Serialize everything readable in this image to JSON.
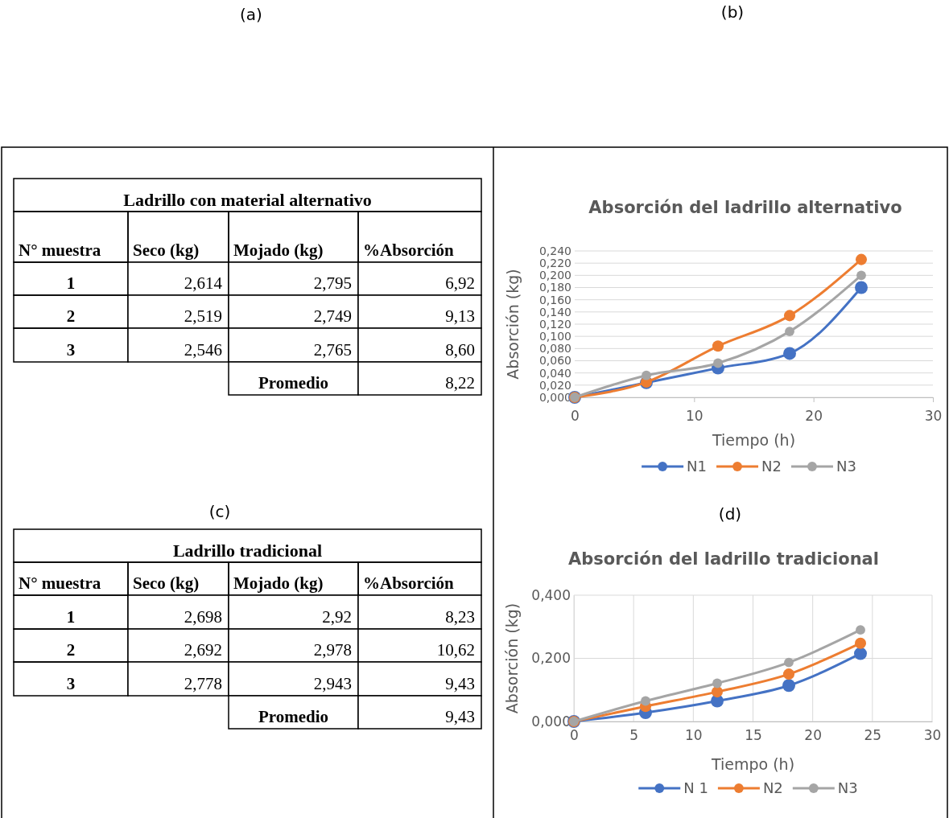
{
  "chart_data": [
    {
      "type": "other",
      "title": "Ladrillo con material alternativo",
      "annotations": [
        "(a)"
      ],
      "ylabel": "N° muestra",
      "categories": [
        "Seco (kg)",
        "Mojado (kg)",
        "%Absorción"
      ],
      "y_categories": [
        "1",
        "2",
        "3",
        null
      ],
      "cell_labels": [
        [
          "2,614",
          "2,795",
          "6,92"
        ],
        [
          "2,519",
          "2,749",
          "9,13"
        ],
        [
          "2,546",
          "2,765",
          "8,60"
        ],
        [
          null,
          "Promedio",
          "8,22"
        ]
      ]
    },
    {
      "type": "line",
      "title": "Absorción del ladrillo alternativo",
      "annotations": [
        "(b)"
      ],
      "xlabel": "Tiempo (h)",
      "ylabel": "Absorción (kg)",
      "x": [
        0,
        6,
        12,
        18,
        24
      ],
      "series": [
        {
          "name": "N1",
          "color": "#4472c4",
          "values": [
            0,
            0.024,
            0.048,
            0.072,
            0.18
          ]
        },
        {
          "name": "N2",
          "color": "#ed7d31",
          "values": [
            0,
            0.025,
            0.084,
            0.134,
            0.226
          ]
        },
        {
          "name": "N3",
          "color": "#a5a5a5",
          "values": [
            0,
            0.036,
            0.056,
            0.108,
            0.2
          ]
        }
      ],
      "xlim": [
        0,
        30
      ],
      "xticks": [
        0,
        10,
        20,
        30
      ],
      "ylim": [
        0,
        0.24
      ],
      "yticks": [
        {
          "value": 0,
          "label": "0,000"
        },
        {
          "value": 0.02,
          "label": "0,020"
        },
        {
          "value": 0.04,
          "label": "0,040"
        },
        {
          "value": 0.06,
          "label": "0,060"
        },
        {
          "value": 0.08,
          "label": "0,080"
        },
        {
          "value": 0.1,
          "label": "0,100"
        },
        {
          "value": 0.12,
          "label": "0,120"
        },
        {
          "value": 0.14,
          "label": "0,140"
        },
        {
          "value": 0.16,
          "label": "0,160"
        },
        {
          "value": 0.18,
          "label": "0,180"
        },
        {
          "value": 0.2,
          "label": "0,200"
        },
        {
          "value": 0.22,
          "label": "0,220"
        },
        {
          "value": 0.24,
          "label": "0,240"
        }
      ],
      "grid": "y",
      "legend": "bottom",
      "marker": "circle",
      "line_style": "solid"
    },
    {
      "type": "other",
      "title": "Ladrillo tradicional",
      "annotations": [
        "(c)"
      ],
      "ylabel": "N° muestra",
      "categories": [
        "Seco (kg)",
        "Mojado (kg)",
        "%Absorción"
      ],
      "y_categories": [
        "1",
        "2",
        "3",
        null
      ],
      "cell_labels": [
        [
          "2,698",
          "2,92",
          "8,23"
        ],
        [
          "2,692",
          "2,978",
          "10,62"
        ],
        [
          "2,778",
          "2,943",
          "9,43"
        ],
        [
          null,
          "Promedio",
          "9,43"
        ]
      ]
    },
    {
      "type": "line",
      "title": "Absorción del ladrillo tradicional",
      "annotations": [
        "(d)"
      ],
      "xlabel": "Tiempo (h)",
      "ylabel": "Absorción (kg)",
      "x": [
        0,
        6,
        12,
        18,
        24
      ],
      "series": [
        {
          "name": "N 1",
          "color": "#4472c4",
          "values": [
            0,
            0.028,
            0.065,
            0.114,
            0.215
          ]
        },
        {
          "name": "N2",
          "color": "#ed7d31",
          "values": [
            0,
            0.048,
            0.094,
            0.15,
            0.248
          ]
        },
        {
          "name": "N3",
          "color": "#a5a5a5",
          "values": [
            0,
            0.065,
            0.121,
            0.187,
            0.29
          ]
        }
      ],
      "xlim": [
        0,
        30
      ],
      "xticks": [
        0,
        5,
        10,
        15,
        20,
        25,
        30
      ],
      "ylim": [
        0,
        0.4
      ],
      "yticks": [
        {
          "value": 0,
          "label": "0,000"
        },
        {
          "value": 0.2,
          "label": "0,200"
        },
        {
          "value": 0.4,
          "label": "0,400"
        }
      ],
      "grid": true,
      "legend": "bottom",
      "marker": "circle",
      "line_style": "solid"
    }
  ]
}
